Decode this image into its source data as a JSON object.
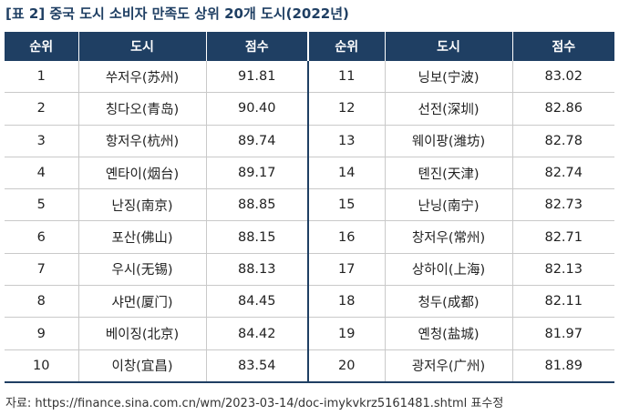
{
  "caption": "[표 2] 중국 도시 소비자 만족도 상위 20개 도시(2022년)",
  "headers": {
    "rank": "순위",
    "city": "도시",
    "score": "점수"
  },
  "rows": [
    {
      "left": {
        "rank": "1",
        "city": "쑤저우(苏州)",
        "score": "91.81"
      },
      "right": {
        "rank": "11",
        "city": "닝보(宁波)",
        "score": "83.02"
      }
    },
    {
      "left": {
        "rank": "2",
        "city": "칭다오(青岛)",
        "score": "90.40"
      },
      "right": {
        "rank": "12",
        "city": "선전(深圳)",
        "score": "82.86"
      }
    },
    {
      "left": {
        "rank": "3",
        "city": "항저우(杭州)",
        "score": "89.74"
      },
      "right": {
        "rank": "13",
        "city": "웨이팡(潍坊)",
        "score": "82.78"
      }
    },
    {
      "left": {
        "rank": "4",
        "city": "옌타이(烟台)",
        "score": "89.17"
      },
      "right": {
        "rank": "14",
        "city": "톈진(天津)",
        "score": "82.74"
      }
    },
    {
      "left": {
        "rank": "5",
        "city": "난징(南京)",
        "score": "88.85"
      },
      "right": {
        "rank": "15",
        "city": "난닝(南宁)",
        "score": "82.73"
      }
    },
    {
      "left": {
        "rank": "6",
        "city": "포산(佛山)",
        "score": "88.15"
      },
      "right": {
        "rank": "16",
        "city": "창저우(常州)",
        "score": "82.71"
      }
    },
    {
      "left": {
        "rank": "7",
        "city": "우시(无锡)",
        "score": "88.13"
      },
      "right": {
        "rank": "17",
        "city": "상하이(上海)",
        "score": "82.13"
      }
    },
    {
      "left": {
        "rank": "8",
        "city": "샤먼(厦门)",
        "score": "84.45"
      },
      "right": {
        "rank": "18",
        "city": "청두(成都)",
        "score": "82.11"
      }
    },
    {
      "left": {
        "rank": "9",
        "city": "베이징(北京)",
        "score": "84.42"
      },
      "right": {
        "rank": "19",
        "city": "옌청(盐城)",
        "score": "81.97"
      }
    },
    {
      "left": {
        "rank": "10",
        "city": "이창(宜昌)",
        "score": "83.54"
      },
      "right": {
        "rank": "20",
        "city": "광저우(广州)",
        "score": "81.89"
      }
    }
  ],
  "source": "자료: https://finance.sina.com.cn/wm/2023-03-14/doc-imykvkrz5161481.shtml 표수정"
}
